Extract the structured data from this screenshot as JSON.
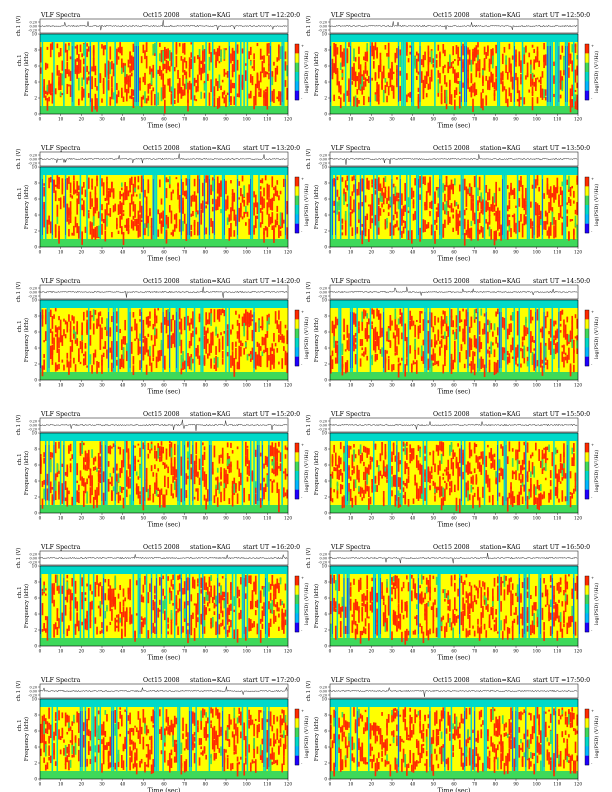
{
  "page": {
    "layout": "2-column by 6-row grid of VLF spectrogram panels"
  },
  "colorbar": {
    "colors": [
      "#1f00ff",
      "#00b8ff",
      "#00d9c9",
      "#3ed95a",
      "#ffff00",
      "#ff2a00"
    ]
  },
  "chart_data": [
    {
      "type": "heatmap",
      "title": "VLF Spectra",
      "date": "Oct15 2008",
      "station": "station=KAG",
      "start_ut": "start  UT =12:20:0",
      "top_ylabel": "ch.1 (V)",
      "top_yticks": [
        "0.20",
        "0.00",
        "-0.20"
      ],
      "ylabel_top": "ch.1",
      "ylabel": "Frequency (kHz)",
      "ylim": [
        0,
        10
      ],
      "yticks": [
        "0",
        "2",
        "4",
        "6",
        "8",
        "10"
      ],
      "xlabel": "Time (sec)",
      "xlim": [
        0,
        120
      ],
      "xticks": [
        "0",
        "10",
        "20",
        "30",
        "40",
        "50",
        "60",
        "70",
        "80",
        "90",
        "100",
        "110",
        "120"
      ],
      "colorbar_label": "log(PSD) (V²/Hz)",
      "colorbar_range_labels": [
        "+",
        "-"
      ],
      "color_scale": "blue(low) to red(high)",
      "dominant_band_khz": [
        1,
        9
      ]
    },
    {
      "type": "heatmap",
      "title": "VLF Spectra",
      "date": "Oct15 2008",
      "station": "station=KAG",
      "start_ut": "start  UT =12:50:0",
      "top_ylabel": "ch.1 (V)",
      "top_yticks": [
        "0.20",
        "0.00",
        "-0.20"
      ],
      "ylabel": "Frequency (kHz)",
      "ylim": [
        0,
        10
      ],
      "yticks": [
        "0",
        "2",
        "4",
        "6",
        "8",
        "10"
      ],
      "xlabel": "Time (sec)",
      "xlim": [
        0,
        120
      ],
      "xticks": [
        "0",
        "10",
        "20",
        "30",
        "40",
        "50",
        "60",
        "70",
        "80",
        "90",
        "100",
        "110",
        "120"
      ],
      "colorbar_label": "log(PSD) (V²/Hz)",
      "colorbar_range_labels": [
        "+",
        "-"
      ],
      "color_scale": "blue(low) to red(high)",
      "dominant_band_khz": [
        1,
        9
      ]
    },
    {
      "type": "heatmap",
      "title": "VLF Spectra",
      "date": "Oct15 2008",
      "station": "station=KAG",
      "start_ut": "start  UT =13:20:0",
      "top_ylabel": "ch.1 (V)",
      "top_yticks": [
        "0.20",
        "0.00",
        "-0.20"
      ],
      "ylabel_top": "ch.1",
      "ylabel": "Frequency (kHz)",
      "ylim": [
        0,
        10
      ],
      "yticks": [
        "0",
        "2",
        "4",
        "6",
        "8",
        "10"
      ],
      "xlabel": "Time (sec)",
      "xlim": [
        0,
        120
      ],
      "xticks": [
        "0",
        "10",
        "20",
        "30",
        "40",
        "50",
        "60",
        "70",
        "80",
        "90",
        "100",
        "110",
        "120"
      ],
      "colorbar_label": "log(PSD) (V²/Hz)",
      "colorbar_range_labels": [
        "+",
        "-"
      ],
      "color_scale": "blue(low) to red(high)",
      "dominant_band_khz": [
        1,
        9
      ]
    },
    {
      "type": "heatmap",
      "title": "VLF Spectra",
      "date": "Oct15 2008",
      "station": "station=KAG",
      "start_ut": "start  UT =13:50:0",
      "top_ylabel": "ch.1 (V)",
      "top_yticks": [
        "0.20",
        "0.00",
        "-0.20"
      ],
      "ylabel": "Frequency (kHz)",
      "ylim": [
        0,
        10
      ],
      "yticks": [
        "0",
        "2",
        "4",
        "6",
        "8",
        "10"
      ],
      "xlabel": "Time (sec)",
      "xlim": [
        0,
        120
      ],
      "xticks": [
        "0",
        "10",
        "20",
        "30",
        "40",
        "50",
        "60",
        "70",
        "80",
        "90",
        "100",
        "110",
        "120"
      ],
      "colorbar_label": "log(PSD) (V²/Hz)",
      "colorbar_range_labels": [
        "+",
        "-"
      ],
      "color_scale": "blue(low) to red(high)",
      "dominant_band_khz": [
        1,
        9
      ]
    },
    {
      "type": "heatmap",
      "title": "VLF Spectra",
      "date": "Oct15 2008",
      "station": "station=KAG",
      "start_ut": "start  UT =14:20:0",
      "top_ylabel": "ch.1 (V)",
      "top_yticks": [
        "0.20",
        "0.00",
        "-0.20"
      ],
      "ylabel_top": "ch.1",
      "ylabel": "Frequency (kHz)",
      "ylim": [
        0,
        10
      ],
      "yticks": [
        "0",
        "2",
        "4",
        "6",
        "8",
        "10"
      ],
      "xlabel": "Time (sec)",
      "xlim": [
        0,
        120
      ],
      "xticks": [
        "0",
        "10",
        "20",
        "30",
        "40",
        "50",
        "60",
        "70",
        "80",
        "90",
        "100",
        "110",
        "120"
      ],
      "colorbar_label": "log(PSD) (V²/Hz)",
      "colorbar_range_labels": [
        "+",
        "-"
      ],
      "color_scale": "blue(low) to red(high)",
      "dominant_band_khz": [
        1,
        9
      ]
    },
    {
      "type": "heatmap",
      "title": "VLF Spectra",
      "date": "Oct15 2008",
      "station": "station=KAG",
      "start_ut": "start  UT =14:50:0",
      "top_ylabel": "ch.1 (V)",
      "top_yticks": [
        "0.20",
        "0.00",
        "-0.20"
      ],
      "ylabel": "Frequency (kHz)",
      "ylim": [
        0,
        10
      ],
      "yticks": [
        "0",
        "2",
        "4",
        "6",
        "8",
        "10"
      ],
      "xlabel": "Time (sec)",
      "xlim": [
        0,
        120
      ],
      "xticks": [
        "0",
        "10",
        "20",
        "30",
        "40",
        "50",
        "60",
        "70",
        "80",
        "90",
        "100",
        "110",
        "120"
      ],
      "colorbar_label": "log(PSD) (V²/Hz)",
      "colorbar_range_labels": [
        "+",
        "-"
      ],
      "color_scale": "blue(low) to red(high)",
      "dominant_band_khz": [
        1,
        9
      ]
    },
    {
      "type": "heatmap",
      "title": "VLF Spectra",
      "date": "Oct15 2008",
      "station": "station=KAG",
      "start_ut": "start  UT =15:20:0",
      "top_ylabel": "ch.1 (V)",
      "top_yticks": [
        "0.20",
        "0.00",
        "-0.20"
      ],
      "ylabel_top": "ch.1",
      "ylabel": "Frequency (kHz)",
      "ylim": [
        0,
        10
      ],
      "yticks": [
        "0",
        "2",
        "4",
        "6",
        "8",
        "10"
      ],
      "xlabel": "Time (sec)",
      "xlim": [
        0,
        120
      ],
      "xticks": [
        "0",
        "10",
        "20",
        "30",
        "40",
        "50",
        "60",
        "70",
        "80",
        "90",
        "100",
        "110",
        "120"
      ],
      "colorbar_label": "log(PSD) (V²/Hz)",
      "colorbar_range_labels": [
        "+",
        "-"
      ],
      "color_scale": "blue(low) to red(high)",
      "dominant_band_khz": [
        1,
        9
      ]
    },
    {
      "type": "heatmap",
      "title": "VLF Spectra",
      "date": "Oct15 2008",
      "station": "station=KAG",
      "start_ut": "start  UT =15:50:0",
      "top_ylabel": "ch.1 (V)",
      "top_yticks": [
        "0.20",
        "0.00",
        "-0.20"
      ],
      "ylabel": "Frequency (kHz)",
      "ylim": [
        0,
        10
      ],
      "yticks": [
        "0",
        "2",
        "4",
        "6",
        "8",
        "10"
      ],
      "xlabel": "Time (sec)",
      "xlim": [
        0,
        120
      ],
      "xticks": [
        "0",
        "10",
        "20",
        "30",
        "40",
        "50",
        "60",
        "70",
        "80",
        "90",
        "100",
        "110",
        "120"
      ],
      "colorbar_label": "log(PSD) (V²/Hz)",
      "colorbar_range_labels": [
        "+",
        "-"
      ],
      "color_scale": "blue(low) to red(high)",
      "dominant_band_khz": [
        1,
        9
      ]
    },
    {
      "type": "heatmap",
      "title": "VLF Spectra",
      "date": "Oct15 2008",
      "station": "station=KAG",
      "start_ut": "start  UT =16:20:0",
      "top_ylabel": "ch.1 (V)",
      "top_yticks": [
        "0.20",
        "0.00",
        "-0.20"
      ],
      "ylabel_top": "ch.1",
      "ylabel": "Frequency (kHz)",
      "ylim": [
        0,
        10
      ],
      "yticks": [
        "0",
        "2",
        "4",
        "6",
        "8",
        "10"
      ],
      "xlabel": "Time (sec)",
      "xlim": [
        0,
        120
      ],
      "xticks": [
        "0",
        "10",
        "20",
        "30",
        "40",
        "50",
        "60",
        "70",
        "80",
        "90",
        "100",
        "110",
        "120"
      ],
      "colorbar_label": "log(PSD) (V²/Hz)",
      "colorbar_range_labels": [
        "+",
        "-"
      ],
      "color_scale": "blue(low) to red(high)",
      "dominant_band_khz": [
        1,
        9
      ]
    },
    {
      "type": "heatmap",
      "title": "VLF Spectra",
      "date": "Oct15 2008",
      "station": "station=KAG",
      "start_ut": "start  UT =16:50:0",
      "top_ylabel": "ch.1 (V)",
      "top_yticks": [
        "0.20",
        "0.00",
        "-0.20"
      ],
      "ylabel": "Frequency (kHz)",
      "ylim": [
        0,
        10
      ],
      "yticks": [
        "0",
        "2",
        "4",
        "6",
        "8",
        "10"
      ],
      "xlabel": "Time (sec)",
      "xlim": [
        0,
        120
      ],
      "xticks": [
        "0",
        "10",
        "20",
        "30",
        "40",
        "50",
        "60",
        "70",
        "80",
        "90",
        "100",
        "110",
        "120"
      ],
      "colorbar_label": "log(PSD) (V²/Hz)",
      "colorbar_range_labels": [
        "+",
        "-"
      ],
      "color_scale": "blue(low) to red(high)",
      "dominant_band_khz": [
        1,
        9
      ]
    },
    {
      "type": "heatmap",
      "title": "VLF Spectra",
      "date": "Oct15 2008",
      "station": "station=KAG",
      "start_ut": "start  UT =17:20:0",
      "top_ylabel": "ch.1 (V)",
      "top_yticks": [
        "0.20",
        "0.00",
        "-0.20"
      ],
      "ylabel_top": "ch.1",
      "ylabel": "Frequency (kHz)",
      "ylim": [
        0,
        10
      ],
      "yticks": [
        "0",
        "2",
        "4",
        "6",
        "8",
        "10"
      ],
      "xlabel": "Time (sec)",
      "xlim": [
        0,
        120
      ],
      "xticks": [
        "0",
        "10",
        "20",
        "30",
        "40",
        "50",
        "60",
        "70",
        "80",
        "90",
        "100",
        "110",
        "120"
      ],
      "colorbar_label": "log(PSD) (V²/Hz)",
      "colorbar_range_labels": [
        "+",
        "-"
      ],
      "color_scale": "blue(low) to red(high)",
      "dominant_band_khz": [
        1,
        9
      ]
    },
    {
      "type": "heatmap",
      "title": "VLF Spectra",
      "date": "Oct15 2008",
      "station": "station=KAG",
      "start_ut": "start  UT =17:50:0",
      "top_ylabel": "ch.1 (V)",
      "top_yticks": [
        "0.20",
        "0.00",
        "-0.20"
      ],
      "ylabel": "Frequency (kHz)",
      "ylim": [
        0,
        10
      ],
      "yticks": [
        "0",
        "2",
        "4",
        "6",
        "8",
        "10"
      ],
      "xlabel": "Time (sec)",
      "xlim": [
        0,
        120
      ],
      "xticks": [
        "0",
        "10",
        "20",
        "30",
        "40",
        "50",
        "60",
        "70",
        "80",
        "90",
        "100",
        "110",
        "120"
      ],
      "colorbar_label": "log(PSD) (V²/Hz)",
      "colorbar_range_labels": [
        "+",
        "-"
      ],
      "color_scale": "blue(low) to red(high)",
      "dominant_band_khz": [
        1,
        9
      ]
    }
  ]
}
